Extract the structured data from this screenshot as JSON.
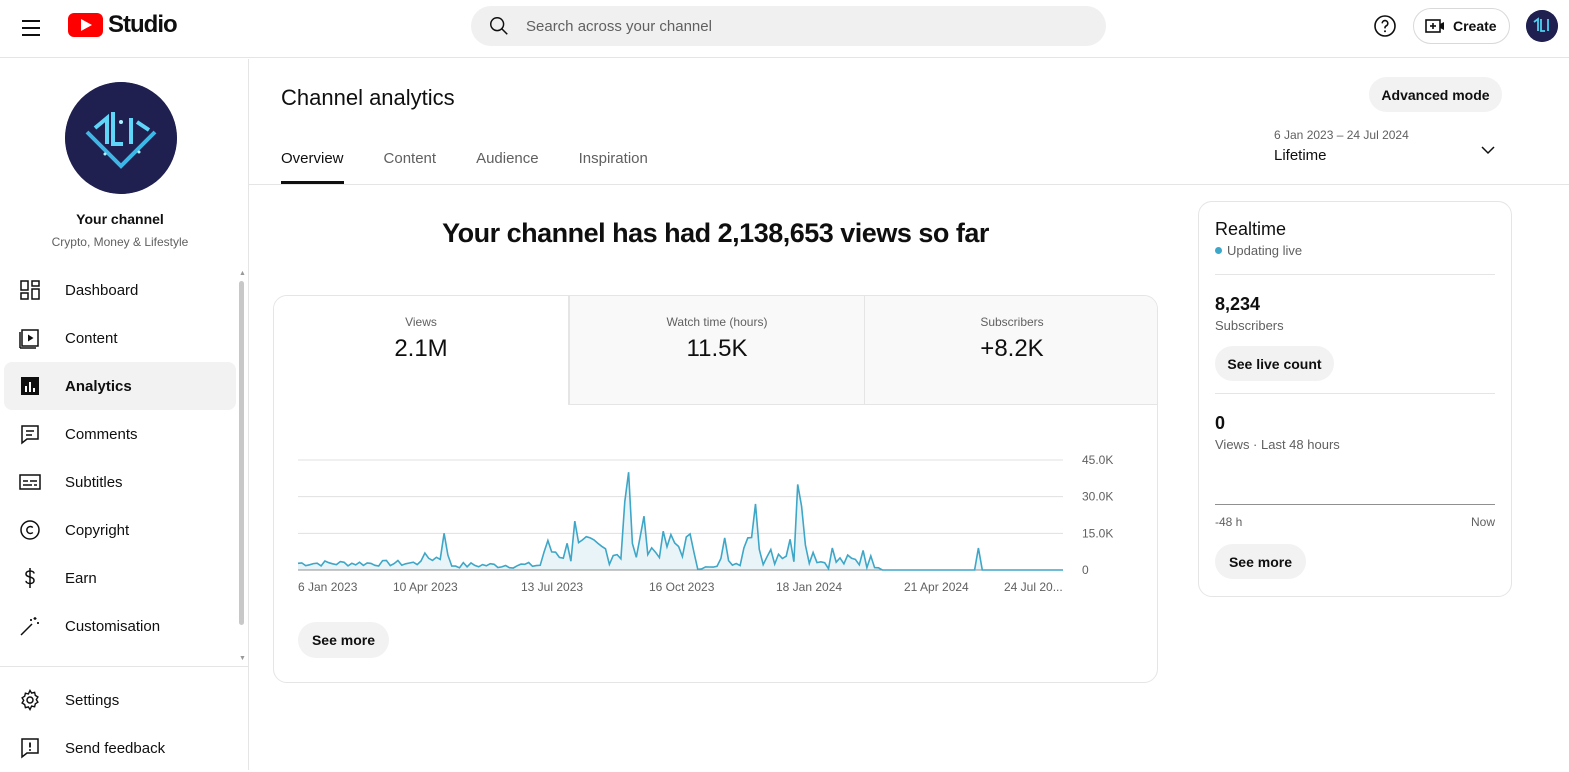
{
  "app": {
    "title": "Studio"
  },
  "search": {
    "placeholder": "Search across your channel"
  },
  "header": {
    "create_label": "Create"
  },
  "channel": {
    "name": "Your channel",
    "description": "Crypto, Money & Lifestyle"
  },
  "sidebar": {
    "items": [
      {
        "label": "Dashboard",
        "icon": "dashboard-icon"
      },
      {
        "label": "Content",
        "icon": "content-icon"
      },
      {
        "label": "Analytics",
        "icon": "analytics-icon",
        "active": true
      },
      {
        "label": "Comments",
        "icon": "comments-icon"
      },
      {
        "label": "Subtitles",
        "icon": "subtitles-icon"
      },
      {
        "label": "Copyright",
        "icon": "copyright-icon"
      },
      {
        "label": "Earn",
        "icon": "earn-icon"
      },
      {
        "label": "Customisation",
        "icon": "customisation-icon"
      }
    ],
    "bottom": [
      {
        "label": "Settings",
        "icon": "gear-icon"
      },
      {
        "label": "Send feedback",
        "icon": "feedback-icon"
      }
    ]
  },
  "main": {
    "title": "Channel analytics",
    "advanced_label": "Advanced mode",
    "tabs": [
      "Overview",
      "Content",
      "Audience",
      "Inspiration"
    ],
    "active_tab": "Overview",
    "date_range": "6 Jan 2023 – 24 Jul 2024",
    "date_label": "Lifetime",
    "headline": "Your channel has had 2,138,653 views so far",
    "metrics": [
      {
        "label": "Views",
        "value": "2.1M"
      },
      {
        "label": "Watch time (hours)",
        "value": "11.5K"
      },
      {
        "label": "Subscribers",
        "value": "+8.2K"
      }
    ],
    "see_more_label": "See more"
  },
  "chart_data": {
    "type": "area",
    "series": [
      {
        "values": []
      }
    ],
    "x_tick_labels": [
      "6 Jan 2023",
      "10 Apr 2023",
      "13 Jul 2023",
      "16 Oct 2023",
      "18 Jan 2024",
      "21 Apr 2024",
      "24 Jul 20..."
    ],
    "y_tick_labels": [
      "45.0K",
      "30.0K",
      "15.0K",
      "0"
    ],
    "ylim": [
      0,
      45000
    ],
    "grid": true,
    "color": "#3ea6c7"
  },
  "realtime": {
    "title": "Realtime",
    "status": "Updating live",
    "subscribers_value": "8,234",
    "subscribers_label": "Subscribers",
    "live_count_label": "See live count",
    "views_value": "0",
    "views_label": "Views · Last 48 hours",
    "axis_start": "-48 h",
    "axis_end": "Now",
    "see_more_label": "See more"
  }
}
